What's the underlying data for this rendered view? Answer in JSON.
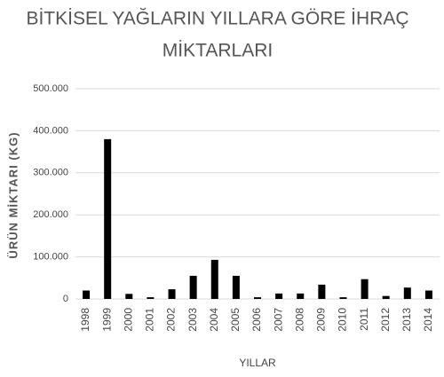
{
  "chart_data": {
    "type": "bar",
    "title": [
      "BİTKİSEL YAĞLARIN YILLARA GÖRE İHRAÇ",
      "MİKTARLARI"
    ],
    "x_label": "YILLAR",
    "y_label": "ÜRÜN MİKTARI (KG)",
    "categories": [
      "1998",
      "1999",
      "2000",
      "2001",
      "2002",
      "2003",
      "2004",
      "2005",
      "2006",
      "2007",
      "2008",
      "2009",
      "2010",
      "2011",
      "2012",
      "2013",
      "2014"
    ],
    "values": [
      20000,
      380000,
      12000,
      4000,
      23000,
      55000,
      93000,
      55000,
      4000,
      13000,
      13000,
      34000,
      4000,
      47000,
      7000,
      27000,
      20000
    ],
    "color": "#000000",
    "ylim": [
      0,
      500000
    ],
    "yticks": [
      0,
      {
        "value": 100000,
        "label": "100.000"
      },
      {
        "value": 200000,
        "label": "200.000"
      },
      {
        "value": 300000,
        "label": "300.000"
      },
      {
        "value": 400000,
        "label": "400.000"
      },
      {
        "value": 500000,
        "label": "500.000"
      }
    ],
    "grid": true
  }
}
